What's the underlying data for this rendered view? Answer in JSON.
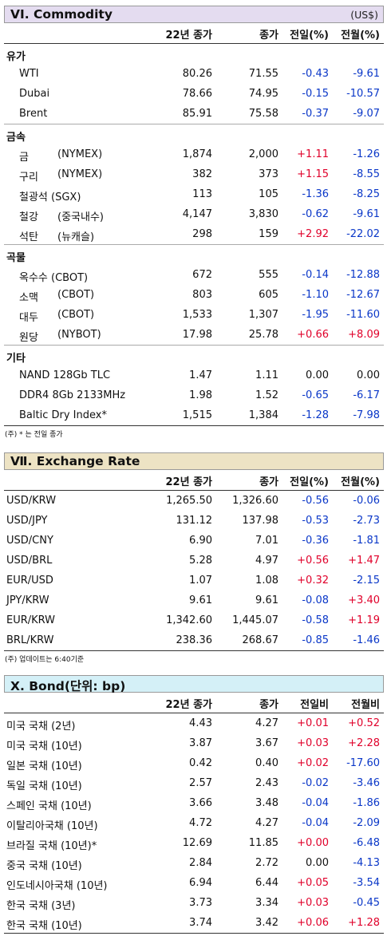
{
  "commodity": {
    "title": "VI. Commodity",
    "unit": "(US$)",
    "headers": [
      "22년 종가",
      "종가",
      "전일(%)",
      "전월(%)"
    ],
    "groups": [
      {
        "category": "유가",
        "rows": [
          {
            "name": "WTI",
            "sub": "",
            "v1": "80.26",
            "v2": "71.55",
            "d": "-0.43",
            "m": "-9.61"
          },
          {
            "name": "Dubai",
            "sub": "",
            "v1": "78.66",
            "v2": "74.95",
            "d": "-0.15",
            "m": "-10.57"
          },
          {
            "name": "Brent",
            "sub": "",
            "v1": "85.91",
            "v2": "75.58",
            "d": "-0.37",
            "m": "-9.07"
          }
        ]
      },
      {
        "category": "금속",
        "rows": [
          {
            "name": "금",
            "sub": "(NYMEX)",
            "v1": "1,874",
            "v2": "2,000",
            "d": "+1.11",
            "m": "-1.26"
          },
          {
            "name": "구리",
            "sub": "(NYMEX)",
            "v1": "382",
            "v2": "373",
            "d": "+1.15",
            "m": "-8.55"
          },
          {
            "name": "철광석 (SGX)",
            "sub": "",
            "v1": "113",
            "v2": "105",
            "d": "-1.36",
            "m": "-8.25"
          },
          {
            "name": "철강",
            "sub": "(중국내수)",
            "v1": "4,147",
            "v2": "3,830",
            "d": "-0.62",
            "m": "-9.61"
          },
          {
            "name": "석탄",
            "sub": "(뉴캐슬)",
            "v1": "298",
            "v2": "159",
            "d": "+2.92",
            "m": "-22.02"
          }
        ]
      },
      {
        "category": "곡물",
        "rows": [
          {
            "name": "옥수수 (CBOT)",
            "sub": "",
            "v1": "672",
            "v2": "555",
            "d": "-0.14",
            "m": "-12.88"
          },
          {
            "name": "소맥",
            "sub": "(CBOT)",
            "v1": "803",
            "v2": "605",
            "d": "-1.10",
            "m": "-12.67"
          },
          {
            "name": "대두",
            "sub": "(CBOT)",
            "v1": "1,533",
            "v2": "1,307",
            "d": "-1.95",
            "m": "-11.60"
          },
          {
            "name": "원당",
            "sub": "(NYBOT)",
            "v1": "17.98",
            "v2": "25.78",
            "d": "+0.66",
            "m": "+8.09"
          }
        ]
      },
      {
        "category": "기타",
        "rows": [
          {
            "name": "NAND 128Gb TLC",
            "sub": "",
            "v1": "1.47",
            "v2": "1.11",
            "d": "0.00",
            "m": "0.00"
          },
          {
            "name": "DDR4 8Gb 2133MHz",
            "sub": "",
            "v1": "1.98",
            "v2": "1.52",
            "d": "-0.65",
            "m": "-6.17"
          },
          {
            "name": "Baltic Dry Index*",
            "sub": "",
            "v1": "1,515",
            "v2": "1,384",
            "d": "-1.28",
            "m": "-7.98"
          }
        ]
      }
    ],
    "note": "(주) * 는 전일 종가"
  },
  "exchange": {
    "title": "Ⅶ. Exchange Rate",
    "headers": [
      "22년 종가",
      "종가",
      "전일(%)",
      "전월(%)"
    ],
    "rows": [
      {
        "name": "USD/KRW",
        "v1": "1,265.50",
        "v2": "1,326.60",
        "d": "-0.56",
        "m": "-0.06"
      },
      {
        "name": "USD/JPY",
        "v1": "131.12",
        "v2": "137.98",
        "d": "-0.53",
        "m": "-2.73"
      },
      {
        "name": "USD/CNY",
        "v1": "6.90",
        "v2": "7.01",
        "d": "-0.36",
        "m": "-1.81"
      },
      {
        "name": "USD/BRL",
        "v1": "5.28",
        "v2": "4.97",
        "d": "+0.56",
        "m": "+1.47"
      },
      {
        "name": "EUR/USD",
        "v1": "1.07",
        "v2": "1.08",
        "d": "+0.32",
        "m": "-2.15"
      },
      {
        "name": "JPY/KRW",
        "v1": "9.61",
        "v2": "9.61",
        "d": "-0.08",
        "m": "+3.40"
      },
      {
        "name": "EUR/KRW",
        "v1": "1,342.60",
        "v2": "1,445.07",
        "d": "-0.58",
        "m": "+1.19"
      },
      {
        "name": "BRL/KRW",
        "v1": "238.36",
        "v2": "268.67",
        "d": "-0.85",
        "m": "-1.46"
      }
    ],
    "note": "(주) 업데이트는 6:40기준"
  },
  "bond": {
    "title": "X. Bond(단위: bp)",
    "headers": [
      "22년 종가",
      "종가",
      "전일비",
      "전월비"
    ],
    "rows": [
      {
        "name": "미국 국채 (2년)",
        "v1": "4.43",
        "v2": "4.27",
        "d": "+0.01",
        "m": "+0.52"
      },
      {
        "name": "미국 국채 (10년)",
        "v1": "3.87",
        "v2": "3.67",
        "d": "+0.03",
        "m": "+2.28"
      },
      {
        "name": "일본 국채 (10년)",
        "v1": "0.42",
        "v2": "0.40",
        "d": "+0.02",
        "m": "-17.60"
      },
      {
        "name": "독일 국채 (10년)",
        "v1": "2.57",
        "v2": "2.43",
        "d": "-0.02",
        "m": "-3.46"
      },
      {
        "name": "스페인 국채 (10년)",
        "v1": "3.66",
        "v2": "3.48",
        "d": "-0.04",
        "m": "-1.86"
      },
      {
        "name": "이탈리아국채 (10년)",
        "v1": "4.72",
        "v2": "4.27",
        "d": "-0.04",
        "m": "-2.09"
      },
      {
        "name": "브라질 국채 (10년)*",
        "v1": "12.69",
        "v2": "11.85",
        "d": "+0.00",
        "m": "-6.48"
      },
      {
        "name": "중국 국채 (10년)",
        "v1": "2.84",
        "v2": "2.72",
        "d": "0.00",
        "m": "-4.13"
      },
      {
        "name": "인도네시아국채 (10년)",
        "v1": "6.94",
        "v2": "6.44",
        "d": "+0.05",
        "m": "-3.54"
      },
      {
        "name": "한국 국채 (3년)",
        "v1": "3.73",
        "v2": "3.34",
        "d": "+0.03",
        "m": "-0.45"
      },
      {
        "name": "한국 국채 (10년)",
        "v1": "3.74",
        "v2": "3.42",
        "d": "+0.06",
        "m": "+1.28"
      }
    ]
  },
  "colors": {
    "commodity_header_bg": "#e4dcf0",
    "exchange_header_bg": "#ede3c4",
    "bond_header_bg": "#d4f0f7",
    "positive": "#e0002a",
    "negative": "#0a37c8"
  }
}
